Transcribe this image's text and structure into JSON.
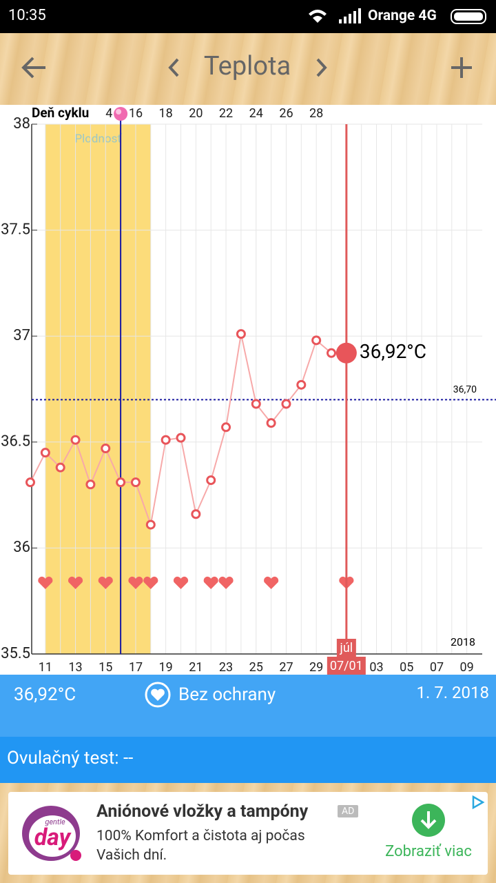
{
  "status_bar": {
    "time": "10:35",
    "carrier": "Orange 4G"
  },
  "header": {
    "title": "Teplota"
  },
  "chart_data": {
    "type": "line",
    "top_axis_title": "Deň cyklu",
    "categories": [
      null,
      "11",
      null,
      "13",
      null,
      "15",
      null,
      "17",
      null,
      "19",
      null,
      "21",
      null,
      "23",
      null,
      "25",
      null,
      "27",
      null,
      "29",
      null,
      "07/01",
      null,
      "03",
      null,
      "05",
      null,
      "07",
      null,
      "09"
    ],
    "cycle_days": [
      null,
      null,
      null,
      null,
      null,
      "4",
      null,
      "16",
      null,
      "18",
      null,
      "20",
      null,
      "22",
      null,
      "24",
      null,
      "26",
      null,
      "28",
      null,
      null,
      null,
      null,
      null,
      null,
      null,
      null,
      null,
      null
    ],
    "series": [
      {
        "name": "Teplota",
        "color": "#e8555a",
        "values": [
          36.31,
          36.45,
          36.38,
          36.51,
          36.3,
          36.47,
          36.31,
          36.31,
          36.11,
          36.51,
          36.52,
          36.16,
          36.32,
          36.57,
          37.01,
          36.68,
          36.59,
          36.68,
          36.77,
          36.98,
          36.92,
          36.92,
          null,
          null,
          null,
          null,
          null,
          null,
          null,
          null
        ],
        "value_labels": [
          null,
          null,
          null,
          null,
          null,
          null,
          null,
          null,
          null,
          null,
          null,
          null,
          null,
          null,
          null,
          null,
          null,
          null,
          null,
          null,
          null,
          "36,92°C",
          null,
          null,
          null,
          null,
          null,
          null,
          null,
          null
        ]
      }
    ],
    "ylim": [
      35.5,
      38
    ],
    "yticks": [
      35.5,
      36,
      36.5,
      37,
      37.5,
      38
    ],
    "grid": true,
    "cover_line": {
      "value": 36.7,
      "label": "36,70"
    },
    "fertile": {
      "label": "Plodnosť",
      "start": 1,
      "end": 8
    },
    "ovulation_index": 6,
    "selected_index": 21,
    "month_label": "júl",
    "year": "2018",
    "hearts": [
      1,
      3,
      5,
      7,
      8,
      10,
      12,
      13,
      16,
      21
    ]
  },
  "info": {
    "temperature": "36,92°C",
    "protection": "Bez ochrany",
    "date": "1. 7. 2018",
    "ovulation_test": "Ovulačný test: --"
  },
  "ad": {
    "logo_small": "gentle",
    "logo": "day",
    "title": "Aniónové vložky a tampóny",
    "badge": "AD",
    "lines": [
      "100% Komfort a čistota aj počas",
      "Vašich dní."
    ],
    "button": "Zobraziť viac"
  }
}
